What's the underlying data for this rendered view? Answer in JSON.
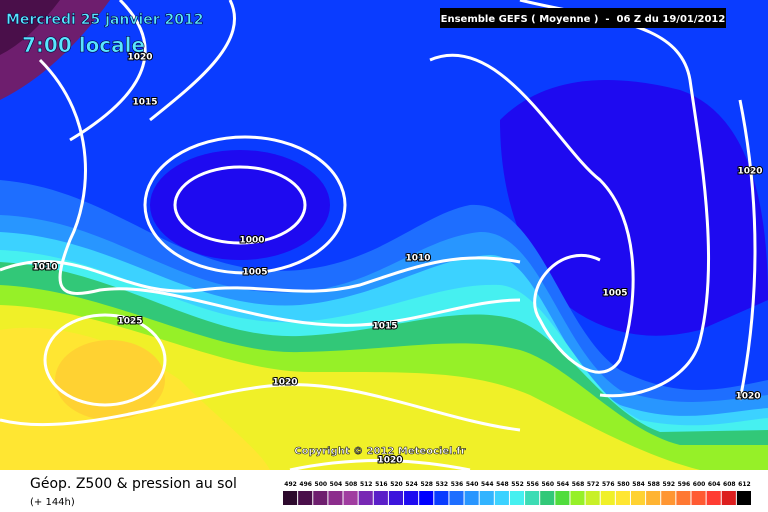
{
  "header": {
    "date": "Mercredi 25 janvier 2012",
    "time": "7:00 locale",
    "run": "Ensemble GEFS ( Moyenne )  -  06 Z du 19/01/2012"
  },
  "isobars": [
    "1020",
    "1015",
    "1000",
    "1005",
    "1010",
    "1010",
    "1025",
    "1015",
    "1020",
    "1005",
    "1020",
    "1020",
    "1020"
  ],
  "copyright": "Copyright © 2012 Meteociel.fr",
  "legend": {
    "title": "Géop. Z500 & pression au sol",
    "subtitle": "(+ 144h)",
    "levels": [
      492,
      496,
      500,
      504,
      508,
      512,
      516,
      520,
      524,
      528,
      532,
      536,
      540,
      544,
      548,
      552,
      556,
      560,
      564,
      568,
      572,
      576,
      580,
      584,
      588,
      592,
      596,
      600,
      604,
      608,
      612
    ],
    "colors": [
      "#2d0a2d",
      "#4a0f4a",
      "#6e1e6e",
      "#8c2d8c",
      "#a03ca0",
      "#7828b4",
      "#5a1ec8",
      "#3c14dc",
      "#1e0af0",
      "#0000ff",
      "#0a3cff",
      "#1e6eff",
      "#2896ff",
      "#32b4ff",
      "#3cd2ff",
      "#46f0f0",
      "#3cdcb4",
      "#32c878",
      "#50dc3c",
      "#96f028",
      "#c8f028",
      "#f0f028",
      "#ffe632",
      "#ffd232",
      "#ffb432",
      "#ff9632",
      "#ff7832",
      "#ff5a32",
      "#ff3c32",
      "#dc1e1e",
      "#000000"
    ]
  }
}
